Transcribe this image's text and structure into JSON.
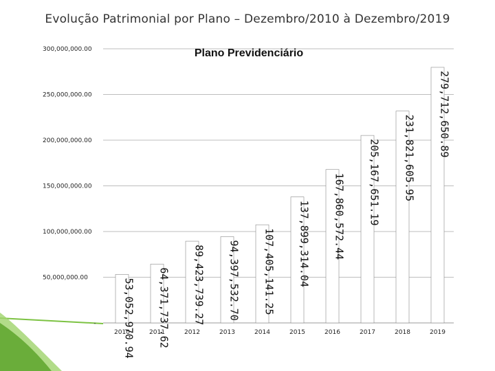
{
  "page": {
    "title": "Evolução Patrimonial por Plano – Dezembro/2010 à Dezembro/2019"
  },
  "colors": {
    "bar": "#ffffff",
    "bar_stroke": "#888888",
    "grid": "#bdbdbd",
    "accent": "#7cc242",
    "accent_dark": "#4e8f2a"
  },
  "chart_data": {
    "type": "bar",
    "title": "Plano Previdenciário",
    "xlabel": "",
    "ylabel": "",
    "ylim": [
      0,
      300000000
    ],
    "grid": true,
    "yticks": [
      0,
      50000000,
      100000000,
      150000000,
      200000000,
      250000000,
      300000000
    ],
    "ytick_labels": [
      "-",
      "50,000,000.00",
      "100,000,000.00",
      "150,000,000.00",
      "200,000,000.00",
      "250,000,000.00",
      "300,000,000.00"
    ],
    "categories": [
      "2010",
      "2011",
      "2012",
      "2013",
      "2014",
      "2015",
      "2016",
      "2017",
      "2018",
      "2019"
    ],
    "values": [
      53052970.94,
      64371737.62,
      89423739.27,
      94397532.7,
      107405141.25,
      137899314.04,
      167860572.44,
      205167651.19,
      231821605.95,
      279712650.89
    ],
    "data_labels": [
      "53,052,970.94",
      "64,371,737.62",
      "89,423,739.27",
      "94,397,532.70",
      "107,405,141.25",
      "137,899,314.04",
      "167,860,572.44",
      "205,167,651.19",
      "231,821,605.95",
      "279,712,650.89"
    ]
  }
}
